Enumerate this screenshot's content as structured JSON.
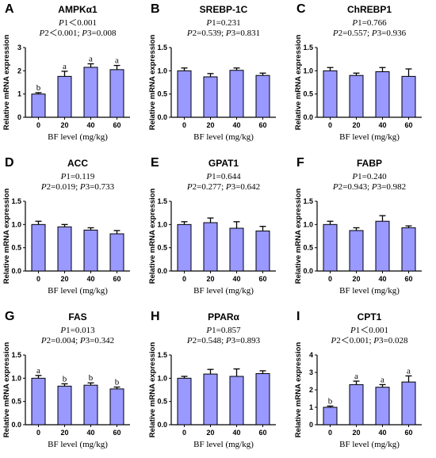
{
  "chart_data": [
    {
      "letter": "A",
      "title": "AMPKα1",
      "type": "bar",
      "stat_lines": [
        "P1＜0.001",
        "P2＜0.001; P3=0.008"
      ],
      "categories": [
        "0",
        "20",
        "40",
        "60"
      ],
      "values": [
        1.0,
        1.76,
        2.15,
        2.05
      ],
      "errors": [
        0.06,
        0.22,
        0.15,
        0.18
      ],
      "labels": [
        "b",
        "a",
        "a",
        "a"
      ],
      "ylim": [
        0,
        3
      ],
      "yticks": [
        "0",
        "1",
        "2",
        "3"
      ],
      "xlabel": "BF level (mg/kg)",
      "ylabel": "Relative mRNA expression",
      "bar_color": "#9999ff"
    },
    {
      "letter": "B",
      "title": "SREBP-1C",
      "type": "bar",
      "stat_lines": [
        "P1=0.231",
        "P2=0.539; P3=0.831"
      ],
      "categories": [
        "0",
        "20",
        "40",
        "60"
      ],
      "values": [
        1.0,
        0.87,
        1.01,
        0.9
      ],
      "errors": [
        0.06,
        0.07,
        0.05,
        0.05
      ],
      "labels": [
        "",
        "",
        "",
        ""
      ],
      "ylim": [
        0,
        1.5
      ],
      "yticks": [
        "0.0",
        "0.5",
        "1.0",
        "1.5"
      ],
      "xlabel": "BF level (mg/kg)",
      "ylabel": "Relative mRNA expression",
      "bar_color": "#9999ff"
    },
    {
      "letter": "C",
      "title": "ChREBP1",
      "type": "bar",
      "stat_lines": [
        "P1=0.766",
        "P2=0.557; P3=0.936"
      ],
      "categories": [
        "0",
        "20",
        "40",
        "60"
      ],
      "values": [
        1.0,
        0.9,
        0.98,
        0.88
      ],
      "errors": [
        0.07,
        0.05,
        0.09,
        0.16
      ],
      "labels": [
        "",
        "",
        "",
        ""
      ],
      "ylim": [
        0,
        1.5
      ],
      "yticks": [
        "0.0",
        "0.5",
        "1.0",
        "1.5"
      ],
      "xlabel": "BF level (mg/kg)",
      "ylabel": "Relative mRNA expression",
      "bar_color": "#9999ff"
    },
    {
      "letter": "D",
      "title": "ACC",
      "type": "bar",
      "stat_lines": [
        "P1=0.119",
        "P2=0.019; P3=0.733"
      ],
      "categories": [
        "0",
        "20",
        "40",
        "60"
      ],
      "values": [
        1.0,
        0.95,
        0.88,
        0.8
      ],
      "errors": [
        0.07,
        0.05,
        0.05,
        0.07
      ],
      "labels": [
        "",
        "",
        "",
        ""
      ],
      "ylim": [
        0,
        1.5
      ],
      "yticks": [
        "0.0",
        "0.5",
        "1.0",
        "1.5"
      ],
      "xlabel": "BF level (mg/kg)",
      "ylabel": "Relative mRNA expression",
      "bar_color": "#9999ff"
    },
    {
      "letter": "E",
      "title": "GPAT1",
      "type": "bar",
      "stat_lines": [
        "P1=0.644",
        "P2=0.277; P3=0.642"
      ],
      "categories": [
        "0",
        "20",
        "40",
        "60"
      ],
      "values": [
        1.0,
        1.04,
        0.92,
        0.86
      ],
      "errors": [
        0.06,
        0.1,
        0.14,
        0.1
      ],
      "labels": [
        "",
        "",
        "",
        ""
      ],
      "ylim": [
        0,
        1.5
      ],
      "yticks": [
        "0.0",
        "0.5",
        "1.0",
        "1.5"
      ],
      "xlabel": "BF level (mg/kg)",
      "ylabel": "Relative mRNA expression",
      "bar_color": "#9999ff"
    },
    {
      "letter": "F",
      "title": "FABP",
      "type": "bar",
      "stat_lines": [
        "P1=0.240",
        "P2=0.943; P3=0.982"
      ],
      "categories": [
        "0",
        "20",
        "40",
        "60"
      ],
      "values": [
        1.0,
        0.87,
        1.07,
        0.93
      ],
      "errors": [
        0.07,
        0.06,
        0.12,
        0.04
      ],
      "labels": [
        "",
        "",
        "",
        ""
      ],
      "ylim": [
        0,
        1.5
      ],
      "yticks": [
        "0.0",
        "0.5",
        "1.0",
        "1.5"
      ],
      "xlabel": "BF level (mg/kg)",
      "ylabel": "Relative mRNA expression",
      "bar_color": "#9999ff"
    },
    {
      "letter": "G",
      "title": "FAS",
      "type": "bar",
      "stat_lines": [
        "P1=0.013",
        "P2=0.004; P3=0.342"
      ],
      "categories": [
        "0",
        "20",
        "40",
        "60"
      ],
      "values": [
        1.0,
        0.83,
        0.85,
        0.77
      ],
      "errors": [
        0.06,
        0.05,
        0.05,
        0.04
      ],
      "labels": [
        "a",
        "b",
        "b",
        "b"
      ],
      "ylim": [
        0,
        1.5
      ],
      "yticks": [
        "0.0",
        "0.5",
        "1.0",
        "1.5"
      ],
      "xlabel": "BF level (mg/kg)",
      "ylabel": "Relative mRNA expression",
      "bar_color": "#9999ff"
    },
    {
      "letter": "H",
      "title": "PPARα",
      "type": "bar",
      "stat_lines": [
        "P1=0.857",
        "P2=0.548; P3=0.893"
      ],
      "categories": [
        "0",
        "20",
        "40",
        "60"
      ],
      "values": [
        1.0,
        1.09,
        1.04,
        1.1
      ],
      "errors": [
        0.04,
        0.1,
        0.16,
        0.06
      ],
      "labels": [
        "",
        "",
        "",
        ""
      ],
      "ylim": [
        0,
        1.5
      ],
      "yticks": [
        "0.0",
        "0.5",
        "1.0",
        "1.5"
      ],
      "xlabel": "BF level (mg/kg)",
      "ylabel": "Relative mRNA expression",
      "bar_color": "#9999ff"
    },
    {
      "letter": "I",
      "title": "CPT1",
      "type": "bar",
      "stat_lines": [
        "P1＜0.001",
        "P2＜0.001; P3=0.028"
      ],
      "categories": [
        "0",
        "20",
        "40",
        "60"
      ],
      "values": [
        1.0,
        2.3,
        2.15,
        2.45
      ],
      "errors": [
        0.07,
        0.2,
        0.15,
        0.35
      ],
      "labels": [
        "b",
        "a",
        "a",
        "a"
      ],
      "ylim": [
        0,
        4
      ],
      "yticks": [
        "0",
        "1",
        "2",
        "3",
        "4"
      ],
      "xlabel": "BF level (mg/kg)",
      "ylabel": "Relative mRNA expression",
      "bar_color": "#9999ff"
    }
  ]
}
